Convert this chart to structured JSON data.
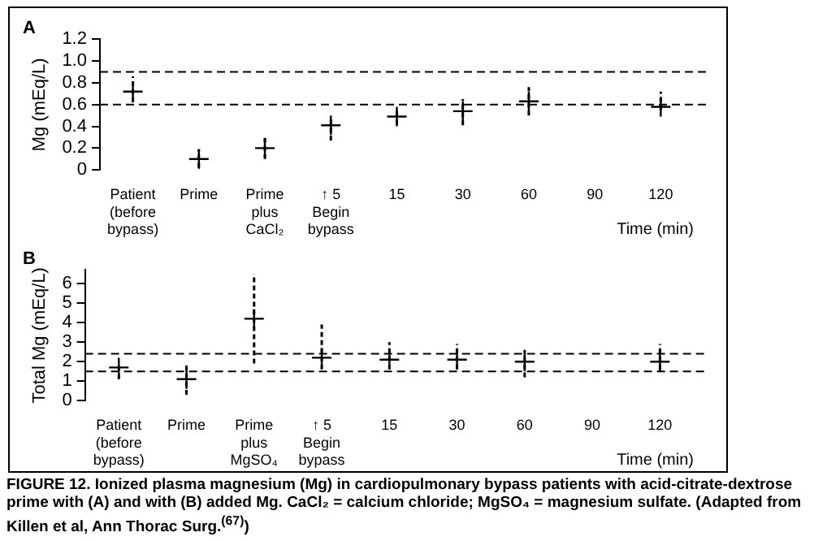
{
  "chart_data": [
    {
      "type": "scatter",
      "title": "A",
      "ylabel": "Mg (mEq/L)",
      "xlabel": "Time (min)",
      "categories": [
        "Patient\n(before\nbypass)",
        "Prime",
        "Prime\nplus\nCaCl₂",
        "↑ 5\nBegin\nbypass",
        "15",
        "30",
        "60",
        "90",
        "120"
      ],
      "series": [
        {
          "color": "#000000",
          "values": [
            0.72,
            0.1,
            0.2,
            0.41,
            0.49,
            0.54,
            0.63,
            null,
            0.58
          ],
          "errors": [
            [
              0.62,
              0.86
            ],
            [
              0.02,
              0.19
            ],
            [
              0.1,
              0.3
            ],
            [
              0.27,
              0.49
            ],
            [
              0.42,
              0.55
            ],
            [
              0.41,
              0.65
            ],
            [
              0.5,
              0.76
            ],
            null,
            [
              0.55,
              0.72
            ]
          ]
        }
      ],
      "ylim": [
        0,
        1.2
      ],
      "yticks": [
        0,
        0.2,
        0.4,
        0.6,
        0.8,
        {
          "value": 1.0,
          "label": "1.0"
        },
        1.2
      ],
      "marker": "cross",
      "grid": false,
      "legend": false,
      "ref_lines": [
        {
          "axis": "y",
          "value": 0.9,
          "line_style": "dashed",
          "color": "#000000"
        },
        {
          "axis": "y",
          "value": 0.6,
          "line_style": "dashed",
          "color": "#000000"
        }
      ]
    },
    {
      "type": "scatter",
      "title": "B",
      "ylabel": "Total Mg (mEq/L)",
      "xlabel": "Time (min)",
      "categories": [
        "Patient\n(before\nbypass)",
        "Prime",
        "Prime\nplus\nMgSO₄",
        "↑ 5\nBegin\nbypass",
        "15",
        "30",
        "60",
        "90",
        "120"
      ],
      "series": [
        {
          "color": "#000000",
          "values": [
            1.7,
            1.1,
            4.2,
            2.2,
            2.1,
            2.1,
            2.0,
            null,
            2.0
          ],
          "errors": [
            [
              1.1,
              1.8
            ],
            [
              0.3,
              1.8
            ],
            [
              1.9,
              6.5
            ],
            [
              1.6,
              3.9
            ],
            [
              1.6,
              3.0
            ],
            [
              1.6,
              2.9
            ],
            [
              1.2,
              2.6
            ],
            null,
            [
              1.6,
              2.9
            ]
          ]
        }
      ],
      "ylim": [
        0,
        6.7
      ],
      "yticks": [
        0,
        1,
        2,
        3,
        4,
        5,
        6
      ],
      "marker": "cross",
      "grid": false,
      "legend": false,
      "ref_lines": [
        {
          "axis": "y",
          "value": 2.4,
          "line_style": "dashed",
          "color": "#000000"
        },
        {
          "axis": "y",
          "value": 1.5,
          "line_style": "dashed",
          "color": "#000000"
        }
      ],
      "annotations": [
        "FIGURE 12.  Ionized plasma magnesium (Mg) in cardiopulmonary bypass patients with acid-citrate-dextrose prime with (A) and with (B) added Mg.  CaCl₂ = calcium chloride; MgSO₄ = magnesium sulfate.  (Adapted from Killen et al, Ann Thorac Surg.$^{(67)}$)"
      ]
    }
  ]
}
